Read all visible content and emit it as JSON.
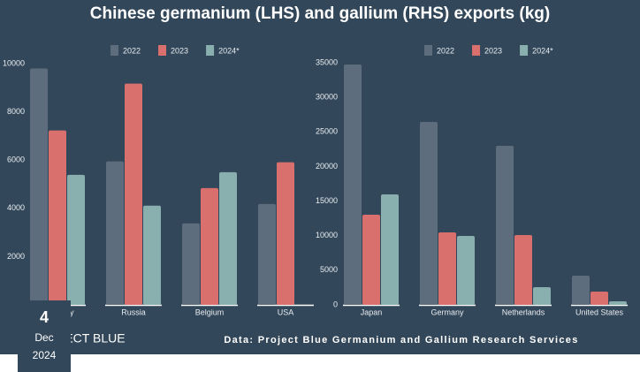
{
  "title": "Chinese germanium (LHS) and gallium (RHS) exports (kg)",
  "source": "Data: Project Blue Germanium and Gallium Research Services",
  "logo": "PROJECT BLUE",
  "date": {
    "day": "4",
    "month": "Dec",
    "year": "2024"
  },
  "chart_data": [
    {
      "type": "bar",
      "categories": [
        "Germany",
        "Russia",
        "Belgium",
        "USA"
      ],
      "series": [
        {
          "name": "2022",
          "color": "#5d6d7d",
          "values": [
            9800,
            5950,
            3380,
            4180
          ]
        },
        {
          "name": "2023",
          "color": "#d9706d",
          "values": [
            7230,
            9170,
            4840,
            5910
          ]
        },
        {
          "name": "2024*",
          "color": "#8aafaf",
          "values": [
            5390,
            4110,
            5500,
            null
          ]
        }
      ],
      "ylim": [
        0,
        10000
      ],
      "yticks": [
        2000,
        4000,
        6000,
        8000,
        10000
      ]
    },
    {
      "type": "bar",
      "categories": [
        "Japan",
        "Germany",
        "Netherlands",
        "United States"
      ],
      "series": [
        {
          "name": "2022",
          "color": "#5d6d7d",
          "values": [
            34740,
            26440,
            22990,
            4220
          ]
        },
        {
          "name": "2023",
          "color": "#d9706d",
          "values": [
            13030,
            10470,
            10090,
            1920
          ]
        },
        {
          "name": "2024*",
          "color": "#8aafaf",
          "values": [
            15970,
            9960,
            2550,
            510
          ]
        }
      ],
      "ylim": [
        0,
        35000
      ],
      "yticks": [
        0,
        5000,
        10000,
        15000,
        20000,
        25000,
        30000,
        35000
      ]
    }
  ]
}
